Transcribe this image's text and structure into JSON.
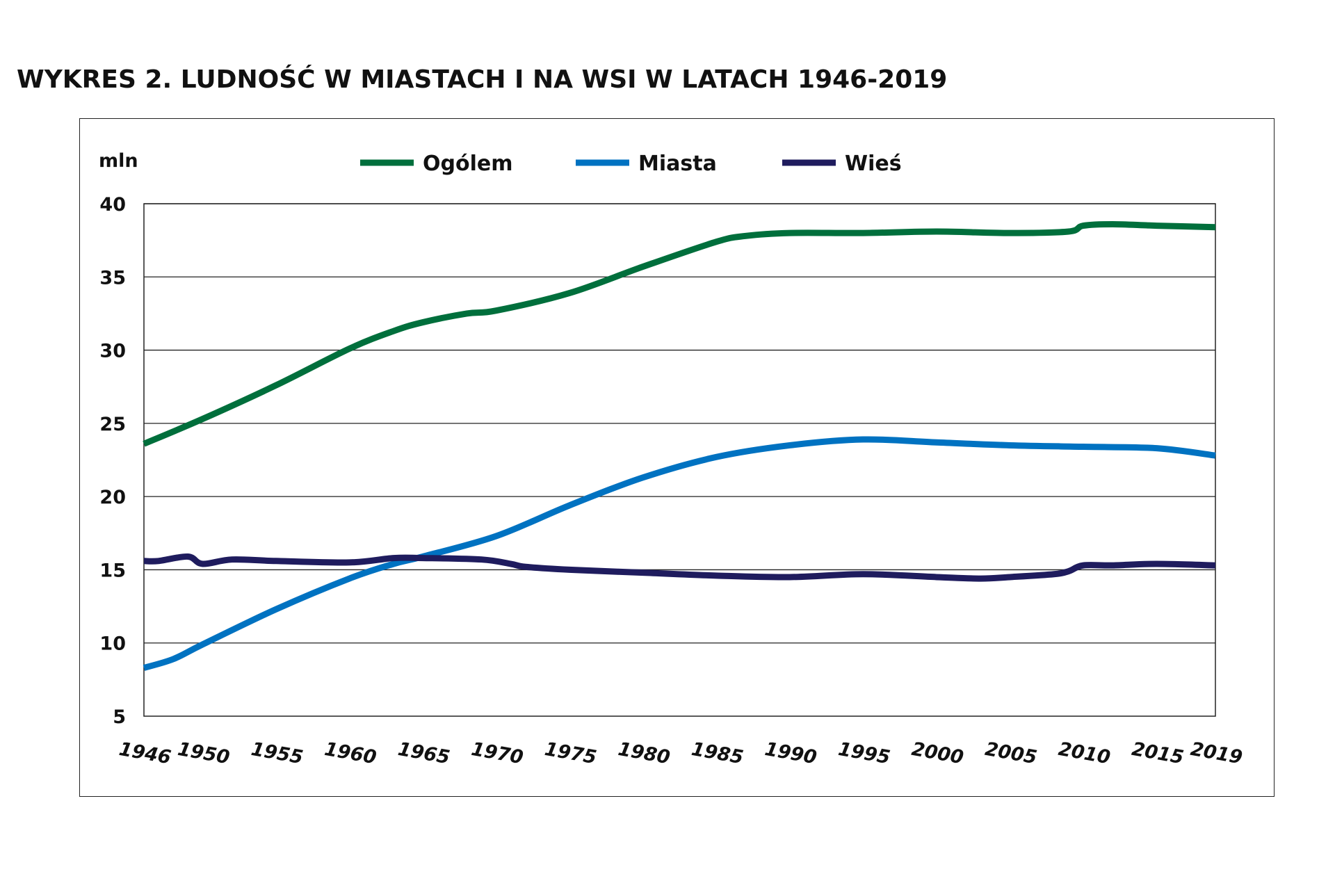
{
  "title": "WYKRES 2. LUDNOŚĆ W MIASTACH I NA WSI W LATACH 1946-2019",
  "chart_data": {
    "type": "line",
    "title": "WYKRES 2. LUDNOŚĆ W MIASTACH I NA WSI W LATACH 1946-2019",
    "ylabel": "mln",
    "xlabel": "",
    "ylim": [
      5,
      40
    ],
    "xlim": [
      1946,
      2019
    ],
    "yticks": [
      5,
      10,
      15,
      20,
      25,
      30,
      35,
      40
    ],
    "xticks": [
      1946,
      1950,
      1955,
      1960,
      1965,
      1970,
      1975,
      1980,
      1985,
      1990,
      1995,
      2000,
      2005,
      2010,
      2015,
      2019
    ],
    "grid": "horizontal",
    "legend": "top",
    "series": [
      {
        "name": "Ogólem",
        "color": "#006f3c",
        "x": [
          1946,
          1950,
          1955,
          1960,
          1963,
          1965,
          1968,
          1970,
          1975,
          1980,
          1985,
          1987,
          1990,
          1995,
          2000,
          2005,
          2009,
          2010,
          2012,
          2015,
          2019
        ],
        "y": [
          23.6,
          25.3,
          27.6,
          30.1,
          31.3,
          31.9,
          32.5,
          32.7,
          33.9,
          35.7,
          37.4,
          37.8,
          38.0,
          38.0,
          38.1,
          38.0,
          38.1,
          38.5,
          38.6,
          38.5,
          38.4
        ]
      },
      {
        "name": "Miasta",
        "color": "#0072c1",
        "x": [
          1946,
          1948,
          1950,
          1955,
          1960,
          1963,
          1965,
          1970,
          1975,
          1980,
          1985,
          1990,
          1995,
          2000,
          2005,
          2010,
          2015,
          2019
        ],
        "y": [
          8.3,
          8.9,
          9.9,
          12.3,
          14.4,
          15.4,
          15.9,
          17.3,
          19.4,
          21.3,
          22.7,
          23.5,
          23.9,
          23.7,
          23.5,
          23.4,
          23.3,
          22.8
        ]
      },
      {
        "name": "Wieś",
        "color": "#1f1c5e",
        "x": [
          1946,
          1947,
          1949,
          1950,
          1952,
          1955,
          1960,
          1963,
          1965,
          1969,
          1971,
          1972,
          1975,
          1980,
          1985,
          1990,
          1995,
          2000,
          2003,
          2005,
          2008,
          2009,
          2010,
          2012,
          2015,
          2019
        ],
        "y": [
          15.6,
          15.6,
          15.9,
          15.4,
          15.7,
          15.6,
          15.5,
          15.8,
          15.8,
          15.7,
          15.4,
          15.2,
          15.0,
          14.8,
          14.6,
          14.5,
          14.7,
          14.5,
          14.4,
          14.5,
          14.7,
          14.9,
          15.3,
          15.3,
          15.4,
          15.3
        ]
      }
    ]
  }
}
